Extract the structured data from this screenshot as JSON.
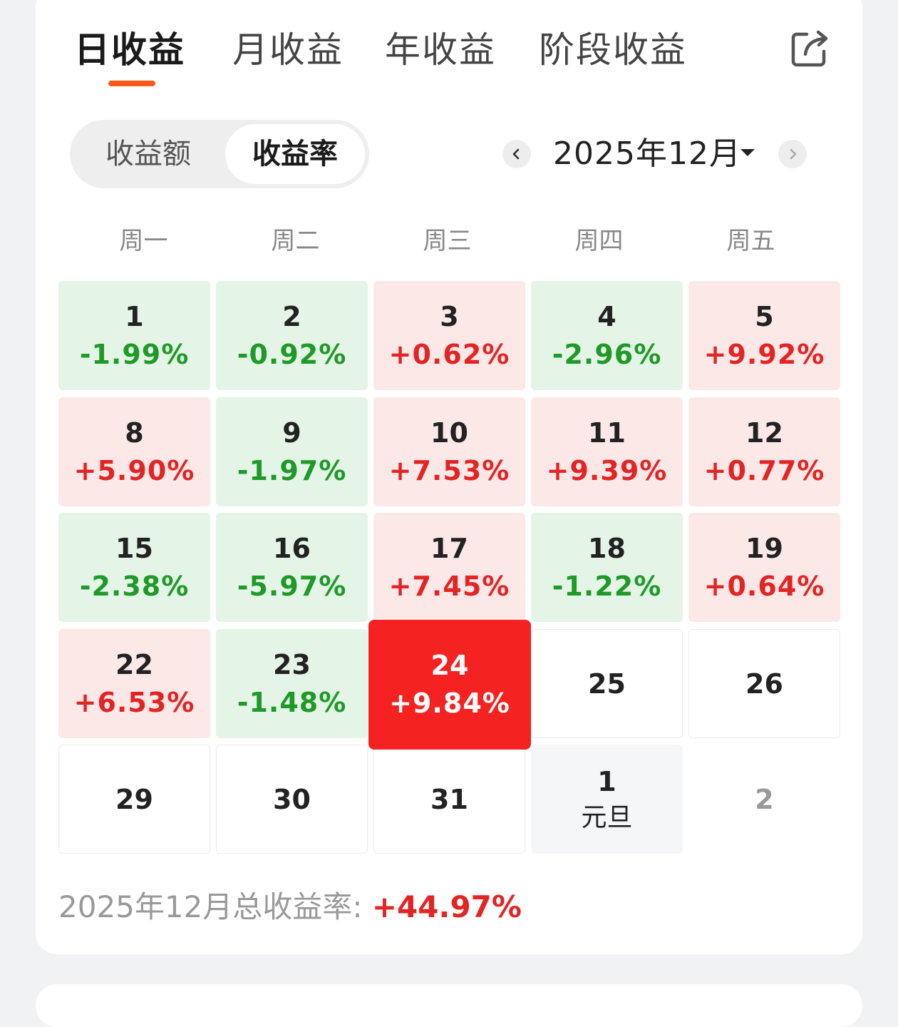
{
  "tabs": [
    "日收益",
    "月收益",
    "年收益",
    "阶段收益"
  ],
  "active_tab": "日收益",
  "segment": {
    "options": [
      "收益额",
      "收益率"
    ],
    "selected": "收益率"
  },
  "month_nav": {
    "label": "2025年12月",
    "prev": "‹",
    "next": "›"
  },
  "weekdays": [
    "周一",
    "周二",
    "周三",
    "周四",
    "周五"
  ],
  "calendar": [
    [
      {
        "day": "1",
        "value": "-1.99%",
        "kind": "green"
      },
      {
        "day": "2",
        "value": "-0.92%",
        "kind": "green"
      },
      {
        "day": "3",
        "value": "+0.62%",
        "kind": "red"
      },
      {
        "day": "4",
        "value": "-2.96%",
        "kind": "green"
      },
      {
        "day": "5",
        "value": "+9.92%",
        "kind": "red"
      }
    ],
    [
      {
        "day": "8",
        "value": "+5.90%",
        "kind": "red"
      },
      {
        "day": "9",
        "value": "-1.97%",
        "kind": "green"
      },
      {
        "day": "10",
        "value": "+7.53%",
        "kind": "red"
      },
      {
        "day": "11",
        "value": "+9.39%",
        "kind": "red"
      },
      {
        "day": "12",
        "value": "+0.77%",
        "kind": "red"
      }
    ],
    [
      {
        "day": "15",
        "value": "-2.38%",
        "kind": "green"
      },
      {
        "day": "16",
        "value": "-5.97%",
        "kind": "green"
      },
      {
        "day": "17",
        "value": "+7.45%",
        "kind": "red"
      },
      {
        "day": "18",
        "value": "-1.22%",
        "kind": "green"
      },
      {
        "day": "19",
        "value": "+0.64%",
        "kind": "red"
      }
    ],
    [
      {
        "day": "22",
        "value": "+6.53%",
        "kind": "red"
      },
      {
        "day": "23",
        "value": "-1.48%",
        "kind": "green"
      },
      {
        "day": "24",
        "value": "+9.84%",
        "kind": "selected"
      },
      {
        "day": "25",
        "value": "",
        "kind": "empty"
      },
      {
        "day": "26",
        "value": "",
        "kind": "empty"
      }
    ],
    [
      {
        "day": "29",
        "value": "",
        "kind": "empty"
      },
      {
        "day": "30",
        "value": "",
        "kind": "empty"
      },
      {
        "day": "31",
        "value": "",
        "kind": "empty"
      },
      {
        "day": "1",
        "value": "",
        "sub": "元旦",
        "kind": "holiday"
      },
      {
        "day": "2",
        "value": "",
        "kind": "muted"
      }
    ]
  ],
  "summary": {
    "label": "2025年12月总收益率: ",
    "value": "+44.97%"
  },
  "colors": {
    "accent": "#ff5a1a",
    "gain": "#e32424",
    "loss": "#1f9a28",
    "selected": "#f52222"
  },
  "icons": {
    "share": "share-export-icon",
    "prev": "chevron-left-icon",
    "next": "chevron-right-icon",
    "dropdown": "caret-down-icon"
  }
}
